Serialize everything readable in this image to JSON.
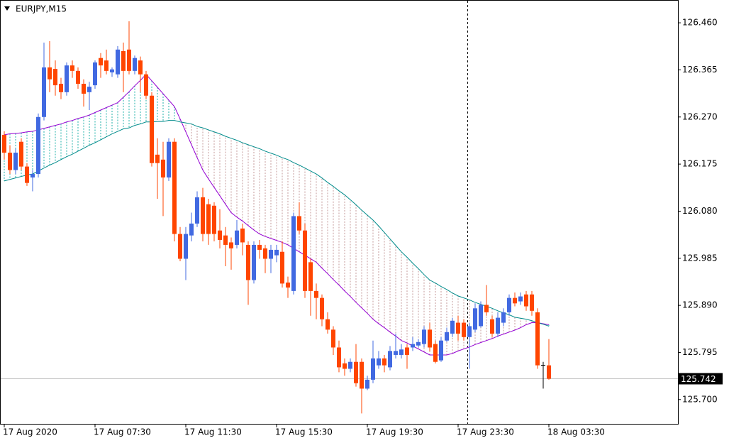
{
  "chart_data": {
    "type": "candlestick",
    "title": "EURJPY,M15",
    "categories": [
      "17 Aug 2020",
      null,
      null,
      null,
      null,
      null,
      null,
      null,
      null,
      null,
      null,
      null,
      null,
      null,
      null,
      null,
      "17 Aug 07:30",
      null,
      null,
      null,
      null,
      null,
      null,
      null,
      null,
      null,
      null,
      null,
      null,
      null,
      null,
      null,
      "17 Aug 11:30",
      null,
      null,
      null,
      null,
      null,
      null,
      null,
      null,
      null,
      null,
      null,
      null,
      null,
      null,
      null,
      "17 Aug 15:30",
      null,
      null,
      null,
      null,
      null,
      null,
      null,
      null,
      null,
      null,
      null,
      null,
      null,
      null,
      null,
      "17 Aug 19:30",
      null,
      null,
      null,
      null,
      null,
      null,
      null,
      null,
      null,
      null,
      null,
      null,
      null,
      null,
      null,
      "17 Aug 23:30",
      null,
      null,
      null,
      null,
      null,
      null,
      null,
      null,
      null,
      null,
      null,
      null,
      null,
      null,
      null,
      "18 Aug 03:30"
    ],
    "ohlc": [
      [
        126.234,
        126.241,
        126.184,
        126.198
      ],
      [
        126.198,
        126.213,
        126.155,
        126.163
      ],
      [
        126.163,
        126.206,
        126.155,
        126.198
      ],
      [
        126.22,
        126.227,
        126.163,
        126.17
      ],
      [
        126.17,
        126.177,
        126.131,
        126.137
      ],
      [
        126.148,
        126.163,
        126.12,
        126.155
      ],
      [
        126.155,
        126.277,
        126.148,
        126.27
      ],
      [
        126.27,
        126.42,
        126.263,
        126.37
      ],
      [
        126.37,
        126.423,
        126.32,
        126.346
      ],
      [
        126.367,
        126.384,
        126.313,
        126.334
      ],
      [
        126.337,
        126.349,
        126.306,
        126.32
      ],
      [
        126.32,
        126.38,
        126.313,
        126.374
      ],
      [
        126.374,
        126.384,
        126.349,
        126.363
      ],
      [
        126.363,
        126.37,
        126.327,
        126.337
      ],
      [
        126.337,
        126.346,
        126.291,
        126.317
      ],
      [
        126.32,
        126.341,
        126.284,
        126.331
      ],
      [
        126.334,
        126.384,
        126.327,
        126.38
      ],
      [
        126.389,
        126.399,
        126.349,
        126.374
      ],
      [
        126.384,
        126.406,
        126.356,
        126.363
      ],
      [
        126.36,
        126.37,
        126.351,
        126.366
      ],
      [
        126.356,
        126.413,
        126.349,
        126.406
      ],
      [
        126.403,
        126.42,
        126.32,
        126.363
      ],
      [
        126.406,
        126.463,
        126.356,
        126.363
      ],
      [
        126.363,
        126.394,
        126.356,
        126.389
      ],
      [
        126.384,
        126.392,
        126.32,
        126.356
      ],
      [
        126.356,
        126.363,
        126.306,
        126.313
      ],
      [
        126.313,
        126.32,
        126.17,
        126.177
      ],
      [
        126.194,
        126.227,
        126.105,
        126.177
      ],
      [
        126.184,
        126.22,
        126.07,
        126.148
      ],
      [
        126.148,
        126.227,
        126.141,
        126.22
      ],
      [
        126.22,
        126.227,
        126.019,
        126.034
      ],
      [
        126.034,
        126.048,
        125.979,
        125.984
      ],
      [
        125.984,
        126.048,
        125.941,
        126.034
      ],
      [
        126.031,
        126.077,
        126.019,
        126.055
      ],
      [
        126.055,
        126.12,
        126.048,
        126.108
      ],
      [
        126.108,
        126.127,
        126.019,
        126.034
      ],
      [
        126.094,
        126.105,
        126.012,
        126.034
      ],
      [
        126.091,
        126.098,
        126.019,
        126.034
      ],
      [
        126.041,
        126.084,
        126.005,
        126.022
      ],
      [
        126.031,
        126.048,
        125.969,
        126.012
      ],
      [
        126.017,
        126.027,
        125.962,
        126.005
      ],
      [
        126.012,
        126.062,
        126.005,
        126.041
      ],
      [
        126.045,
        126.055,
        125.991,
        126.017
      ],
      [
        126.012,
        126.019,
        125.891,
        125.941
      ],
      [
        125.941,
        126.019,
        125.934,
        126.012
      ],
      [
        126.012,
        126.022,
        125.984,
        126.002
      ],
      [
        126.005,
        126.012,
        125.955,
        125.984
      ],
      [
        125.984,
        126.012,
        125.955,
        126.002
      ],
      [
        125.991,
        126.012,
        125.977,
        126.002
      ],
      [
        125.998,
        126.019,
        125.926,
        125.934
      ],
      [
        125.936,
        125.948,
        125.905,
        125.926
      ],
      [
        125.919,
        126.077,
        125.912,
        126.07
      ],
      [
        126.07,
        126.098,
        126.034,
        126.041
      ],
      [
        126.041,
        126.055,
        125.905,
        125.919
      ],
      [
        125.977,
        125.984,
        125.869,
        125.919
      ],
      [
        125.919,
        125.934,
        125.862,
        125.905
      ],
      [
        125.905,
        125.912,
        125.848,
        125.862
      ],
      [
        125.862,
        125.876,
        125.833,
        125.841
      ],
      [
        125.841,
        125.848,
        125.79,
        125.805
      ],
      [
        125.805,
        125.819,
        125.755,
        125.765
      ],
      [
        125.773,
        125.783,
        125.748,
        125.762
      ],
      [
        125.762,
        125.783,
        125.755,
        125.776
      ],
      [
        125.776,
        125.812,
        125.726,
        125.733
      ],
      [
        125.776,
        125.783,
        125.672,
        125.722
      ],
      [
        125.722,
        125.748,
        125.719,
        125.74
      ],
      [
        125.74,
        125.819,
        125.733,
        125.783
      ],
      [
        125.769,
        125.798,
        125.762,
        125.783
      ],
      [
        125.783,
        125.79,
        125.755,
        125.769
      ],
      [
        125.765,
        125.808,
        125.759,
        125.798
      ],
      [
        125.79,
        125.833,
        125.783,
        125.798
      ],
      [
        125.79,
        125.812,
        125.783,
        125.801
      ],
      [
        125.805,
        125.812,
        125.762,
        125.79
      ],
      [
        125.805,
        125.826,
        125.798,
        125.812
      ],
      [
        125.809,
        125.822,
        125.805,
        125.816
      ],
      [
        125.812,
        125.848,
        125.805,
        125.841
      ],
      [
        125.841,
        125.855,
        125.798,
        125.805
      ],
      [
        125.812,
        125.819,
        125.773,
        125.776
      ],
      [
        125.779,
        125.826,
        125.776,
        125.819
      ],
      [
        125.819,
        125.845,
        125.816,
        125.836
      ],
      [
        125.833,
        125.865,
        125.826,
        125.859
      ],
      [
        125.855,
        125.869,
        125.819,
        125.833
      ],
      [
        125.855,
        125.862,
        125.819,
        125.826
      ],
      [
        125.826,
        125.855,
        125.762,
        125.848
      ],
      [
        125.841,
        125.894,
        125.836,
        125.884
      ],
      [
        125.848,
        125.898,
        125.845,
        125.891
      ],
      [
        125.891,
        125.931,
        125.869,
        125.876
      ],
      [
        125.862,
        125.869,
        125.826,
        125.833
      ],
      [
        125.833,
        125.876,
        125.826,
        125.865
      ],
      [
        125.855,
        125.884,
        125.848,
        125.876
      ],
      [
        125.876,
        125.912,
        125.869,
        125.905
      ],
      [
        125.905,
        125.916,
        125.888,
        125.894
      ],
      [
        125.898,
        125.916,
        125.891,
        125.908
      ],
      [
        125.912,
        125.919,
        125.879,
        125.888
      ],
      [
        125.912,
        125.919,
        125.869,
        125.879
      ],
      [
        125.876,
        125.884,
        125.762,
        125.769
      ],
      [
        125.769,
        125.776,
        125.722,
        125.769
      ],
      [
        125.769,
        125.822,
        125.74,
        125.742
      ]
    ],
    "up_color": "#4169e1",
    "down_color": "#ff4500",
    "doji_color": "#000000",
    "indicators": [
      {
        "color": "#9400d3",
        "values": [
          126.234,
          126.236,
          126.237,
          126.238,
          126.24,
          126.241,
          126.244,
          126.247,
          126.25,
          126.253,
          126.256,
          126.26,
          126.263,
          126.267,
          126.27,
          126.274,
          126.279,
          126.284,
          126.289,
          126.294,
          126.299,
          126.31,
          126.321,
          126.333,
          126.344,
          126.356,
          126.343,
          126.33,
          126.317,
          126.304,
          126.291,
          126.266,
          126.24,
          126.214,
          126.188,
          126.163,
          126.145,
          126.128,
          126.111,
          126.094,
          126.077,
          126.068,
          126.06,
          126.051,
          126.042,
          126.034,
          126.029,
          126.025,
          126.021,
          126.017,
          126.012,
          126.005,
          125.998,
          125.991,
          125.984,
          125.977,
          125.965,
          125.954,
          125.942,
          125.931,
          125.919,
          125.908,
          125.896,
          125.885,
          125.874,
          125.862,
          125.853,
          125.845,
          125.836,
          125.828,
          125.819,
          125.814,
          125.808,
          125.802,
          125.796,
          125.79,
          125.79,
          125.79,
          125.79,
          125.793,
          125.798,
          125.802,
          125.806,
          125.811,
          125.815,
          125.819,
          125.823,
          125.828,
          125.832,
          125.836,
          125.84,
          125.845,
          125.851,
          125.855,
          125.855,
          125.853,
          125.851
        ]
      },
      {
        "color": "#008b8b",
        "values": [
          126.141,
          126.144,
          126.147,
          126.15,
          126.153,
          126.155,
          126.161,
          126.167,
          126.173,
          126.178,
          126.184,
          126.19,
          126.195,
          126.201,
          126.207,
          126.213,
          126.218,
          126.224,
          126.23,
          126.236,
          126.241,
          126.246,
          126.248,
          126.253,
          126.256,
          126.26,
          126.26,
          126.261,
          126.261,
          126.263,
          126.263,
          126.26,
          126.258,
          126.256,
          126.251,
          126.248,
          126.244,
          126.24,
          126.236,
          126.231,
          126.227,
          126.223,
          126.218,
          126.214,
          126.21,
          126.206,
          126.201,
          126.197,
          126.193,
          126.188,
          126.184,
          126.178,
          126.173,
          126.167,
          126.161,
          126.155,
          126.147,
          126.138,
          126.13,
          126.121,
          126.113,
          126.103,
          126.093,
          126.082,
          126.072,
          126.062,
          126.05,
          126.037,
          126.024,
          126.011,
          125.998,
          125.987,
          125.975,
          125.964,
          125.952,
          125.941,
          125.935,
          125.928,
          125.922,
          125.915,
          125.909,
          125.905,
          125.901,
          125.896,
          125.892,
          125.888,
          125.884,
          125.879,
          125.875,
          125.871,
          125.866,
          125.864,
          125.862,
          125.859,
          125.855,
          125.852,
          125.848
        ]
      }
    ],
    "hatch_up_color": "#20b2aa",
    "hatch_down_color": "#c49a9a",
    "last_price": 125.742,
    "ylim": [
      125.651,
      126.506
    ],
    "yticks": [
      {
        "value": 126.46,
        "label": "126.460"
      },
      126.365,
      {
        "value": 126.27,
        "label": "126.270"
      },
      126.175,
      {
        "value": 126.08,
        "label": "126.080"
      },
      125.985,
      {
        "value": 125.89,
        "label": "125.890"
      },
      125.795,
      {
        "value": 125.7,
        "label": "125.700"
      }
    ]
  }
}
